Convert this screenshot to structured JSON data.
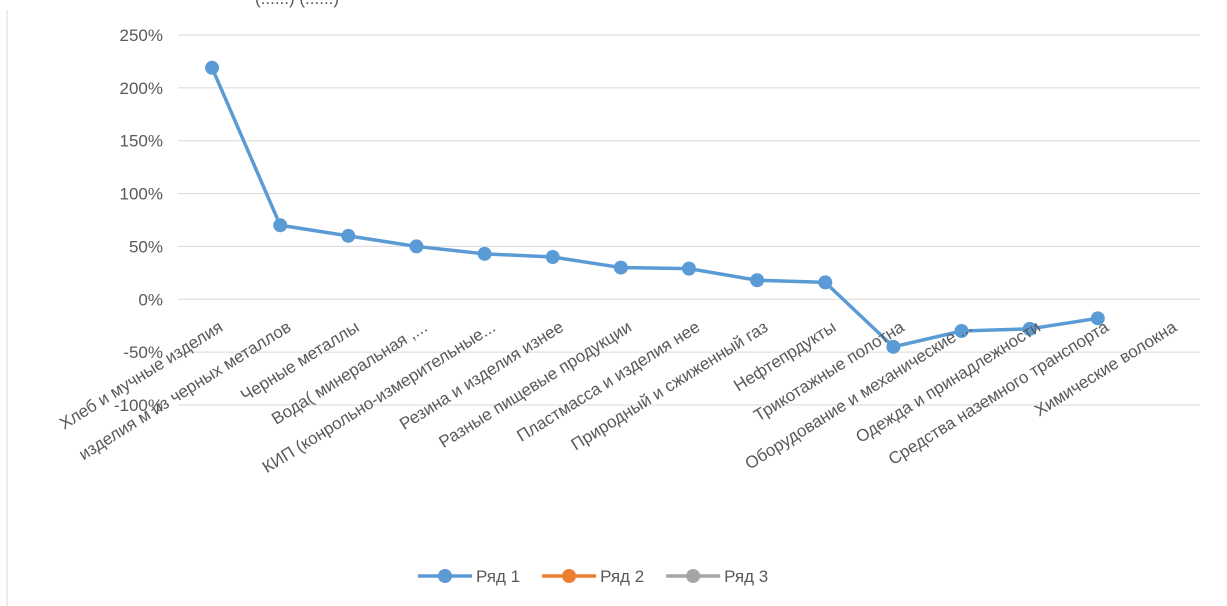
{
  "chart_data": {
    "type": "line",
    "title": "",
    "xlabel": "",
    "ylabel": "",
    "header_fragment": "(......)               (......)",
    "categories": [
      "Хлеб и мучные изделия",
      "изделия м из черных металлов",
      "Черные металлы",
      "Вода( минеральная ,...",
      "КИП (конрольно-измерительные...",
      "Резина и изделия изнее",
      "Разные пищевые продукции",
      "Пластмасса и изделия нее",
      "Природный и сжиженный газ",
      "Нефтепрдукты",
      "Трикотажные полотна",
      "Оборудование и механические ...",
      "Одежда и принадлежности",
      "Средства наземного транспорта",
      "Химические волокна"
    ],
    "series": [
      {
        "name": "Ряд 1",
        "color": "#5b9bd5",
        "values": [
          219,
          70,
          60,
          50,
          43,
          40,
          30,
          29,
          18,
          16,
          -45,
          -30,
          -28,
          -18,
          null
        ]
      },
      {
        "name": "Ряд 2",
        "color": "#ed7d31",
        "values": [
          null,
          null,
          null,
          null,
          null,
          null,
          null,
          null,
          null,
          null,
          null,
          null,
          null,
          null,
          null
        ]
      },
      {
        "name": "Ряд 3",
        "color": "#a5a5a5",
        "values": [
          null,
          null,
          null,
          null,
          null,
          null,
          null,
          null,
          null,
          null,
          null,
          null,
          null,
          null,
          null
        ]
      }
    ],
    "y_unit": "%",
    "ylim": [
      -100,
      250
    ],
    "y_ticks": [
      "250%",
      "200%",
      "150%",
      "100%",
      "50%",
      "0%",
      "-50%",
      "-100%"
    ],
    "grid": true,
    "legend_position": "bottom"
  }
}
